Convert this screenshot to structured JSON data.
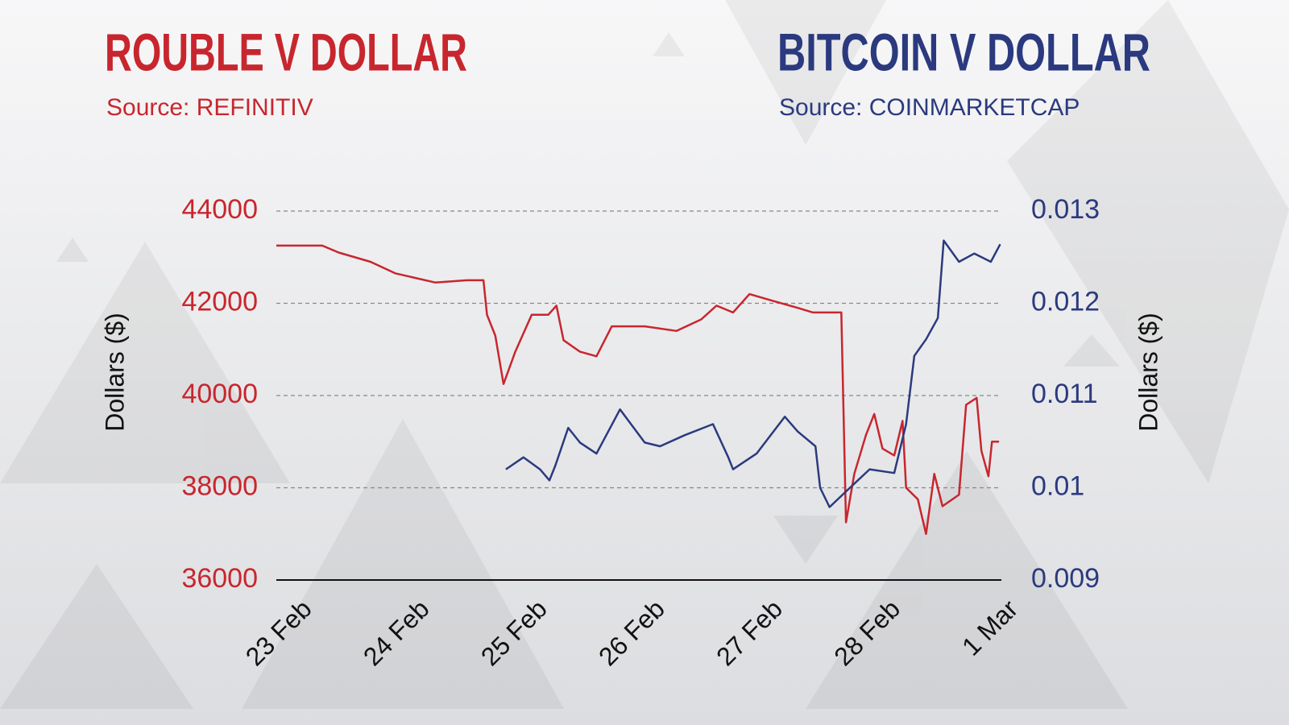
{
  "chart_data": {
    "type": "line",
    "xlim": [
      -0.08,
      6.08
    ],
    "xticks": [
      {
        "value": 0,
        "label": "23 Feb"
      },
      {
        "value": 1,
        "label": "24 Feb"
      },
      {
        "value": 2,
        "label": "25 Feb"
      },
      {
        "value": 3,
        "label": "26 Feb"
      },
      {
        "value": 4,
        "label": "27 Feb"
      },
      {
        "value": 5,
        "label": "28 Feb"
      },
      {
        "value": 6,
        "label": "1 Mar"
      }
    ],
    "ylim": [
      36000,
      44000
    ],
    "yticks": [
      36000,
      38000,
      40000,
      42000,
      44000
    ],
    "ylabel": "Dollars ($)",
    "y2lim": [
      0.009,
      0.013
    ],
    "y2ticks": [
      0.009,
      0.01,
      0.011,
      0.012,
      0.013
    ],
    "y2label": "Dollars ($)",
    "grid": true,
    "series": [
      {
        "name": "ROUBLE V DOLLAR",
        "source": "Source: REFINITIV",
        "color": "#c8262e",
        "x": [
          -0.08,
          0.31,
          0.45,
          0.72,
          0.93,
          1.27,
          1.54,
          1.68,
          1.71,
          1.78,
          1.85,
          1.95,
          2.09,
          2.23,
          2.3,
          2.36,
          2.5,
          2.64,
          2.77,
          3.05,
          3.32,
          3.53,
          3.66,
          3.8,
          3.94,
          4.14,
          4.35,
          4.48,
          4.72,
          4.76,
          4.83,
          4.93,
          5.0,
          5.07,
          5.17,
          5.24,
          5.27,
          5.37,
          5.44,
          5.51,
          5.58,
          5.72,
          5.78,
          5.87,
          5.91,
          5.97,
          6.0,
          6.06
        ],
        "values": [
          43250,
          43250,
          43100,
          42900,
          42650,
          42450,
          42500,
          42500,
          41750,
          41300,
          40250,
          40950,
          41750,
          41750,
          41950,
          41200,
          40950,
          40850,
          41500,
          41500,
          41400,
          41650,
          41950,
          41800,
          42200,
          42050,
          41900,
          41800,
          41800,
          37250,
          38300,
          39150,
          39600,
          38850,
          38700,
          39450,
          38000,
          37750,
          37000,
          38300,
          37600,
          37850,
          39800,
          39950,
          38800,
          38250,
          39000,
          39000
        ]
      },
      {
        "name": "BITCOIN V DOLLAR",
        "source": "Source: COINMARKETCAP",
        "color": "#2b3a7e",
        "axis": "y2",
        "x": [
          1.87,
          2.02,
          2.16,
          2.24,
          2.29,
          2.4,
          2.5,
          2.64,
          2.84,
          3.05,
          3.18,
          3.39,
          3.63,
          3.76,
          3.8,
          4.0,
          4.24,
          4.35,
          4.5,
          4.54,
          4.62,
          4.76,
          4.86,
          4.96,
          5.17,
          5.27,
          5.34,
          5.44,
          5.54,
          5.59,
          5.72,
          5.85,
          5.99,
          6.07
        ],
        "values": [
          0.0102,
          0.01033,
          0.0102,
          0.01008,
          0.01024,
          0.01065,
          0.01049,
          0.01037,
          0.01085,
          0.01049,
          0.01045,
          0.01057,
          0.01069,
          0.01033,
          0.0102,
          0.01037,
          0.01077,
          0.01061,
          0.01045,
          0.01,
          0.00979,
          0.00996,
          0.01008,
          0.0102,
          0.01016,
          0.01069,
          0.01143,
          0.01161,
          0.01184,
          0.01268,
          0.01245,
          0.01254,
          0.01245,
          0.01264
        ]
      }
    ]
  }
}
